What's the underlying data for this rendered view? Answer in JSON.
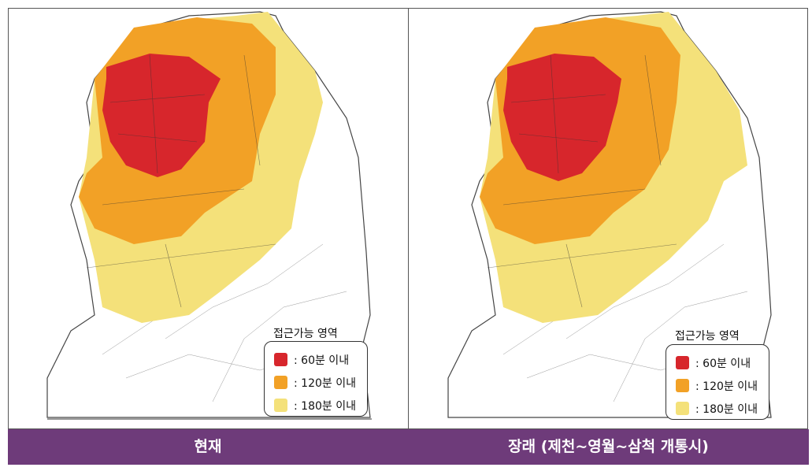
{
  "panels": [
    {
      "caption": "현재"
    },
    {
      "caption": "장래 (제천~영월~삼척 개통시)"
    }
  ],
  "legend": {
    "title": "접근가능 영역",
    "items": [
      {
        "label": ": 60분 이내",
        "color": "#d7262c"
      },
      {
        "label": ": 120분 이내",
        "color": "#f2a126"
      },
      {
        "label": ": 180분 이내",
        "color": "#f4e17a"
      }
    ]
  },
  "colors": {
    "caption_bar": "#6e3b7a",
    "land": "#ffffff",
    "boundary": "#555555"
  }
}
